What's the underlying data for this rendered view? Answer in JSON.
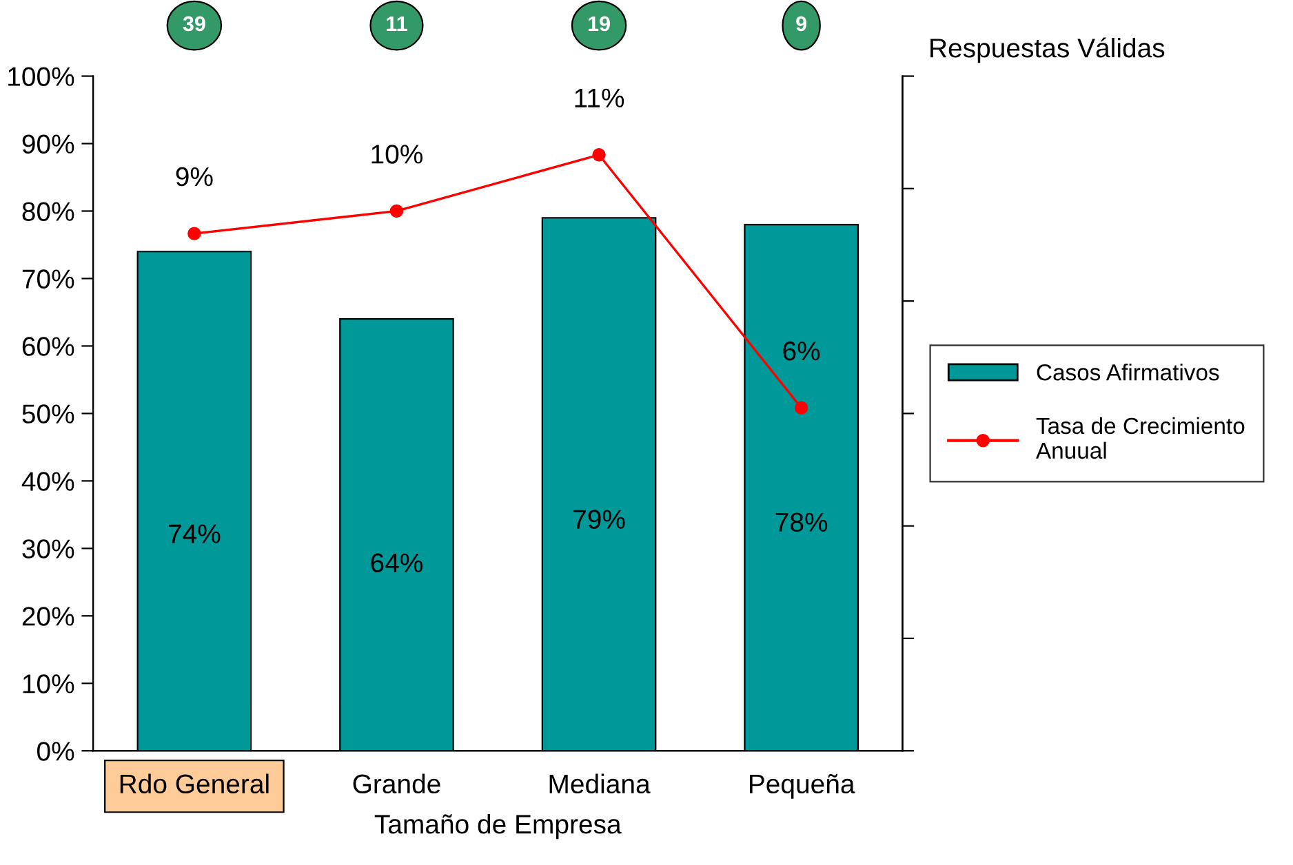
{
  "chart_data": {
    "type": "bar",
    "xlabel": "Tamaño de Empresa",
    "categories": [
      "Rdo General",
      "Grande",
      "Mediana",
      "Pequeña"
    ],
    "series": [
      {
        "name": "Casos Afirmativos",
        "color": "#009999",
        "values": [
          74,
          64,
          79,
          78
        ],
        "value_labels": [
          "74%",
          "64%",
          "79%",
          "78%"
        ]
      },
      {
        "name": "Tasa de Crecimiento Anuual",
        "type": "line",
        "axis": "y2",
        "color": "#ff0000",
        "marker": "circle",
        "values": [
          9.2,
          9.6,
          10.6,
          6.1
        ],
        "value_labels": [
          "9%",
          "10%",
          "11%",
          "6%"
        ]
      }
    ],
    "ylim": [
      0,
      100
    ],
    "yticks": [
      {
        "value": 0,
        "label": "0%"
      },
      {
        "value": 10,
        "label": "10%"
      },
      {
        "value": 20,
        "label": "20%"
      },
      {
        "value": 30,
        "label": "30%"
      },
      {
        "value": 40,
        "label": "40%"
      },
      {
        "value": 50,
        "label": "50%"
      },
      {
        "value": 60,
        "label": "60%"
      },
      {
        "value": 70,
        "label": "70%"
      },
      {
        "value": 80,
        "label": "80%"
      },
      {
        "value": 90,
        "label": "90%"
      },
      {
        "value": 100,
        "label": "100%"
      }
    ],
    "y2lim": [
      0,
      12
    ],
    "y2ticks": [
      {
        "value": 0,
        "label": null
      },
      {
        "value": 2,
        "label": null
      },
      {
        "value": 4,
        "label": null
      },
      {
        "value": 6,
        "label": null
      },
      {
        "value": 8,
        "label": null
      },
      {
        "value": 10,
        "label": null
      },
      {
        "value": 12,
        "label": null
      }
    ],
    "tick_labels": "x",
    "annotations": [
      "Respuestas Válidas",
      "39",
      "11",
      "19",
      "9"
    ],
    "legend": "right",
    "grid": false
  }
}
